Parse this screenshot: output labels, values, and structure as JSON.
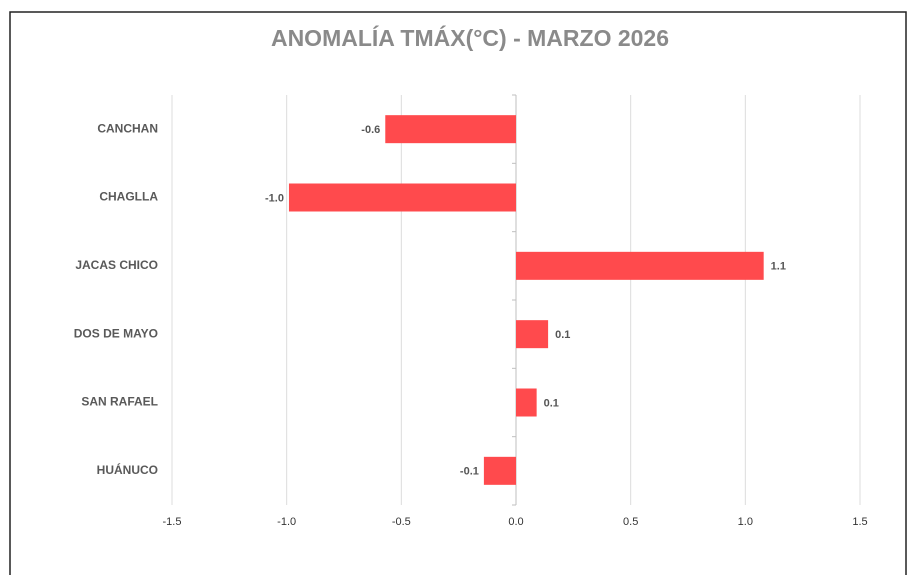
{
  "chart_data": {
    "type": "bar",
    "orientation": "horizontal",
    "title": "ANOMALÍA TMÁX(°C) - MARZO 2026",
    "categories": [
      "CANCHAN",
      "CHAGLLA",
      "JACAS CHICO",
      "DOS DE MAYO",
      "SAN RAFAEL",
      "HUÁNUCO"
    ],
    "values": [
      -0.57,
      -0.99,
      1.08,
      0.14,
      0.09,
      -0.14
    ],
    "value_labels": [
      "-0.6",
      "-1.0",
      "1.1",
      "0.1",
      "0.1",
      "-0.1"
    ],
    "color": "#ff4a4d",
    "xlim": [
      -1.5,
      1.5
    ],
    "xticks": [
      -1.5,
      {
        "value": -1,
        "label": "-1.0"
      },
      -0.5,
      {
        "value": 0,
        "label": "0.0"
      },
      0.5,
      {
        "value": 1,
        "label": "1.0"
      },
      1.5
    ],
    "grid": true
  }
}
